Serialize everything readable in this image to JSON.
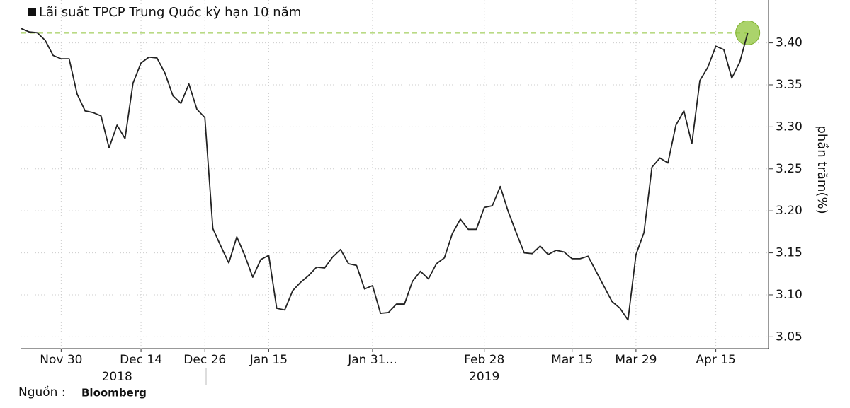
{
  "chart_data": {
    "type": "line",
    "title": "Lãi suất TPCP Trung Quốc kỳ hạn 10 năm",
    "y_axis_label": "phần trăm(%)",
    "source": {
      "prefix": "Nguồn :",
      "name": "Bloomberg"
    },
    "year_labels": [
      {
        "value": 12,
        "label": "2018"
      },
      {
        "value": 58,
        "label": "2019"
      }
    ],
    "color": "#222222",
    "reference_color": "#8fc43a",
    "grid": true,
    "xlim": [
      0,
      93.6
    ],
    "xticks": [
      {
        "value": 5,
        "label": "Nov 30"
      },
      {
        "value": 15,
        "label": "Dec 14"
      },
      {
        "value": 23,
        "label": "Dec 26"
      },
      {
        "value": 31,
        "label": "Jan 15"
      },
      {
        "value": 44,
        "label": "Jan 31..."
      },
      {
        "value": 58,
        "label": "Feb 28"
      },
      {
        "value": 69,
        "label": "Mar 15"
      },
      {
        "value": 77,
        "label": "Mar 29"
      },
      {
        "value": 87,
        "label": "Apr 15"
      }
    ],
    "ylim": [
      3.036,
      3.451
    ],
    "yticks": [
      {
        "value": 3.05,
        "label": "3.05"
      },
      {
        "value": 3.1,
        "label": "3.10"
      },
      3.15,
      {
        "value": 3.2,
        "label": "3.20"
      },
      3.25,
      {
        "value": 3.3,
        "label": "3.30"
      },
      3.35,
      {
        "value": 3.4,
        "label": "3.40"
      }
    ],
    "values": [
      3.417,
      3.413,
      3.412,
      3.403,
      3.385,
      3.381,
      3.381,
      3.339,
      3.319,
      3.317,
      3.313,
      3.275,
      3.302,
      3.286,
      3.352,
      3.376,
      3.383,
      3.382,
      3.364,
      3.337,
      3.328,
      3.351,
      3.321,
      3.311,
      3.179,
      3.158,
      3.138,
      3.169,
      3.147,
      3.121,
      3.142,
      3.147,
      3.084,
      3.082,
      3.105,
      3.115,
      3.123,
      3.133,
      3.132,
      3.145,
      3.154,
      3.137,
      3.135,
      3.107,
      3.111,
      3.078,
      3.079,
      3.089,
      3.089,
      3.116,
      3.128,
      3.119,
      3.137,
      3.144,
      3.173,
      3.19,
      3.178,
      3.178,
      3.204,
      3.206,
      3.229,
      3.199,
      3.174,
      3.15,
      3.149,
      3.158,
      3.148,
      3.153,
      3.151,
      3.143,
      3.143,
      3.146,
      3.128,
      3.11,
      3.092,
      3.084,
      3.07,
      3.148,
      3.174,
      3.252,
      3.263,
      3.257,
      3.302,
      3.319,
      3.28,
      3.355,
      3.371,
      3.396,
      3.392,
      3.358,
      3.377,
      3.412
    ]
  }
}
